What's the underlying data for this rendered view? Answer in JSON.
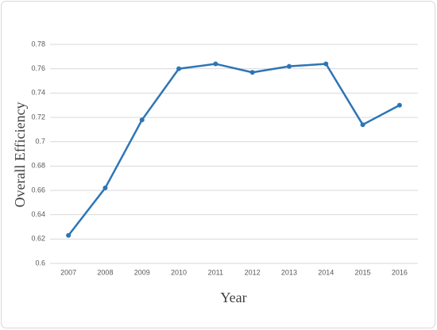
{
  "chart_data": {
    "type": "line",
    "x_label": "Year",
    "y_label": "Overall Efficiency",
    "categories": [
      "2007",
      "2008",
      "2009",
      "2010",
      "2011",
      "2012",
      "2013",
      "2014",
      "2015",
      "2016"
    ],
    "values": [
      0.623,
      0.662,
      0.718,
      0.76,
      0.764,
      0.757,
      0.762,
      0.764,
      0.714,
      0.73
    ],
    "color": "#2e75b6",
    "ylim": [
      0.6,
      0.78
    ],
    "yticks": [
      0.6,
      0.62,
      0.64,
      0.66,
      0.68,
      0.7,
      0.72,
      0.74,
      0.76,
      0.78
    ],
    "grid": true
  }
}
